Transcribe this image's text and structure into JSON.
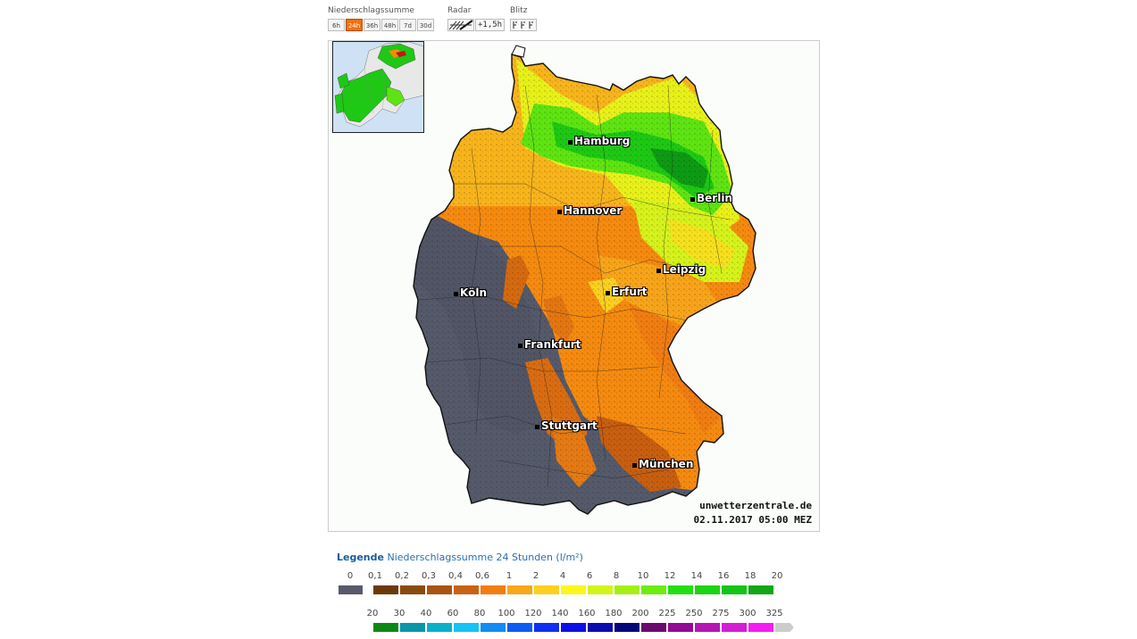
{
  "toolbar": {
    "precip_label": "Niederschlagssumme",
    "radar_label": "Radar",
    "lightning_label": "Blitz",
    "periods": [
      {
        "label": "6h",
        "active": false
      },
      {
        "label": "24h",
        "active": true
      },
      {
        "label": "36h",
        "active": false
      },
      {
        "label": "48h",
        "active": false
      },
      {
        "label": "7d",
        "active": false
      },
      {
        "label": "30d",
        "active": false
      }
    ],
    "radar_offset": "+1,5h",
    "lightning_icons": "┵┵┵"
  },
  "map": {
    "cities": [
      {
        "name": "Hamburg"
      },
      {
        "name": "Berlin"
      },
      {
        "name": "Hannover"
      },
      {
        "name": "Leipzig"
      },
      {
        "name": "Köln"
      },
      {
        "name": "Erfurt"
      },
      {
        "name": "Frankfurt"
      },
      {
        "name": "Stuttgart"
      },
      {
        "name": "München"
      }
    ],
    "credit_site": "unwetterzentrale.de",
    "credit_time": "02.11.2017 05:00 MEZ"
  },
  "legend": {
    "title_word": "Legende",
    "title_text": "Niederschlagssumme 24 Stunden  (l/m²)",
    "row1_values": [
      "0",
      "0,1",
      "0,2",
      "0,3",
      "0,4",
      "0,6",
      "1",
      "2",
      "4",
      "6",
      "8",
      "10",
      "12",
      "14",
      "16",
      "18",
      "20"
    ],
    "row1_colors": [
      "#565a6a",
      "#6b3a08",
      "#8b4a0c",
      "#a85510",
      "#c86212",
      "#f47d10",
      "#f8a818",
      "#fcd020",
      "#fcf61c",
      "#d2f41a",
      "#a4f014",
      "#6ced0e",
      "#22e010",
      "#1cd414",
      "#14c416",
      "#10a814"
    ],
    "row2_values": [
      "20",
      "30",
      "40",
      "60",
      "80",
      "100",
      "120",
      "140",
      "160",
      "180",
      "200",
      "225",
      "250",
      "275",
      "300",
      "325"
    ],
    "row2_colors": [
      "#0a8a12",
      "#0896a8",
      "#0ab0c8",
      "#14c4f4",
      "#108cf4",
      "#0c5cf4",
      "#1030f0",
      "#0c10e8",
      "#0a0ab0",
      "#06067c",
      "#6a0a70",
      "#920a96",
      "#b414b4",
      "#d41cd4",
      "#f41cf0",
      "#cccccc"
    ]
  }
}
